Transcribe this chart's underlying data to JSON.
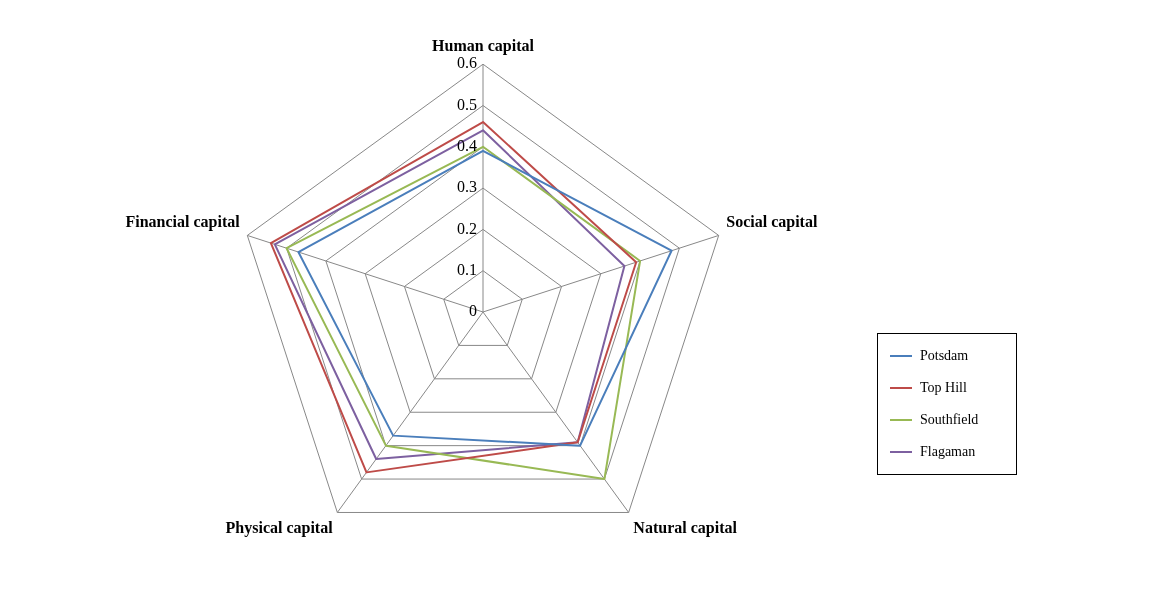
{
  "chart_data": {
    "type": "radar",
    "categories": [
      "Human capital",
      "Social capital",
      "Natural capital",
      "Physical capital",
      "Financial capital"
    ],
    "series": [
      {
        "name": "Potsdam",
        "color": "#4a7ebb",
        "values": [
          0.39,
          0.48,
          0.4,
          0.37,
          0.47
        ]
      },
      {
        "name": "Top Hill",
        "color": "#be4b48",
        "values": [
          0.46,
          0.39,
          0.39,
          0.48,
          0.54
        ]
      },
      {
        "name": "Southfield",
        "color": "#98b954",
        "values": [
          0.4,
          0.4,
          0.5,
          0.4,
          0.5
        ]
      },
      {
        "name": "Flagaman",
        "color": "#7d60a0",
        "values": [
          0.44,
          0.36,
          0.39,
          0.44,
          0.53
        ]
      }
    ],
    "ylim": [
      0,
      0.6
    ],
    "yticks": [
      0,
      0.1,
      0.2,
      0.3,
      0.4,
      0.5,
      0.6
    ],
    "grid": true,
    "legend": "right",
    "marker": "none",
    "line_style": "solid"
  }
}
